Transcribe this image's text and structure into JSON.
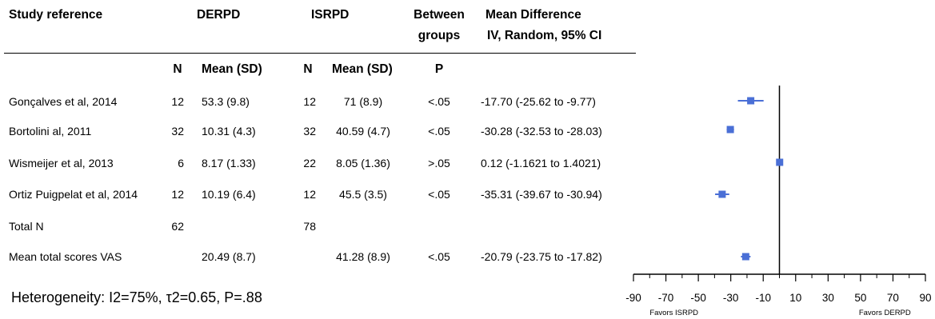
{
  "headers": {
    "study": "Study reference",
    "derpd": "DERPD",
    "isrpd": "ISRPD",
    "between_line1": "Between",
    "between_line2": "groups",
    "md_line1": "Mean Difference",
    "md_line2": "IV, Random, 95% CI",
    "n1": "N",
    "mean1": "Mean (SD)",
    "n2": "N",
    "mean2": "Mean (SD)",
    "p": "P"
  },
  "rows": [
    {
      "study": "Gonçalves et al, 2014",
      "n1": "12",
      "mean1": "53.3 (9.8)",
      "n2": "12",
      "mean2": "71 (8.9)",
      "p": "<.05",
      "ci": "-17.70 (-25.62 to -9.77)"
    },
    {
      "study": "Bortolini al, 2011",
      "n1": "32",
      "mean1": "10.31 (4.3)",
      "n2": "32",
      "mean2": "40.59 (4.7)",
      "p": "<.05",
      "ci": "-30.28 (-32.53 to -28.03)"
    },
    {
      "study": "Wismeijer et al, 2013",
      "n1": "6",
      "mean1": "8.17 (1.33)",
      "n2": "22",
      "mean2": "8.05 (1.36)",
      "p": ">.05",
      "ci": "0.12 (-1.1621 to 1.4021)"
    },
    {
      "study": "Ortiz Puigpelat et al, 2014",
      "n1": "12",
      "mean1": "10.19 (6.4)",
      "n2": "12",
      "mean2": "45.5 (3.5)",
      "p": "<.05",
      "ci": "-35.31 (-39.67 to -30.94)"
    },
    {
      "study": "Total N",
      "n1": "62",
      "mean1": "",
      "n2": "78",
      "mean2": "",
      "p": "",
      "ci": ""
    },
    {
      "study": "Mean total scores VAS",
      "n1": "",
      "mean1": "20.49 (8.7)",
      "n2": "",
      "mean2": "41.28 (8.9)",
      "p": "<.05",
      "ci": "-20.79 (-23.75 to -17.82)"
    }
  ],
  "heterogeneity": "Heterogeneity: I2=75%, τ2=0.65, P=.88",
  "chart_data": {
    "type": "scatter",
    "xlim": [
      -90,
      90
    ],
    "x_ticks": [
      -90,
      -70,
      -50,
      -30,
      -10,
      10,
      30,
      50,
      70,
      90
    ],
    "x_tick_labels": [
      "-90",
      "-70",
      "-50",
      "-30",
      "-10",
      "10",
      "30",
      "50",
      "70",
      "90"
    ],
    "favors_left": "Favors ISRPD",
    "favors_right": "Favors DERPD",
    "points": [
      {
        "study": "Gonçalves et al, 2014",
        "estimate": -17.7,
        "lower": -25.62,
        "upper": -9.77
      },
      {
        "study": "Bortolini al, 2011",
        "estimate": -30.28,
        "lower": -32.53,
        "upper": -28.03
      },
      {
        "study": "Wismeijer et al, 2013",
        "estimate": 0.12,
        "lower": -1.1621,
        "upper": 1.4021
      },
      {
        "study": "Ortiz Puigpelat et al, 2014",
        "estimate": -35.31,
        "lower": -39.67,
        "upper": -30.94
      },
      {
        "study": "Mean total scores VAS",
        "estimate": -20.79,
        "lower": -23.75,
        "upper": -17.82
      }
    ],
    "marker_color": "#4a6fd6",
    "line_color": "#000000"
  }
}
